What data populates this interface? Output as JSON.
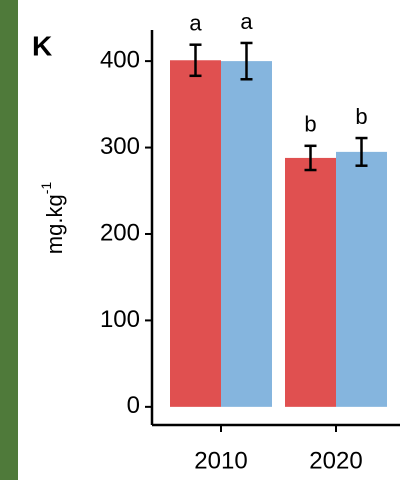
{
  "chart_data": {
    "type": "bar",
    "panel_label": "K",
    "ylabel": "mg.kg",
    "ylabel_superscript": "-1",
    "categories": [
      "2010",
      "2020"
    ],
    "series": [
      {
        "color": "#e05050",
        "values": [
          401,
          288
        ],
        "errors": [
          18,
          14
        ],
        "letters": [
          "a",
          "b"
        ]
      },
      {
        "color": "#85b5de",
        "values": [
          400,
          295
        ],
        "errors": [
          21,
          16
        ],
        "letters": [
          "a",
          "b"
        ]
      }
    ],
    "ylim": [
      -21,
      436
    ],
    "yticks": [
      0,
      100,
      200,
      300,
      400
    ]
  }
}
